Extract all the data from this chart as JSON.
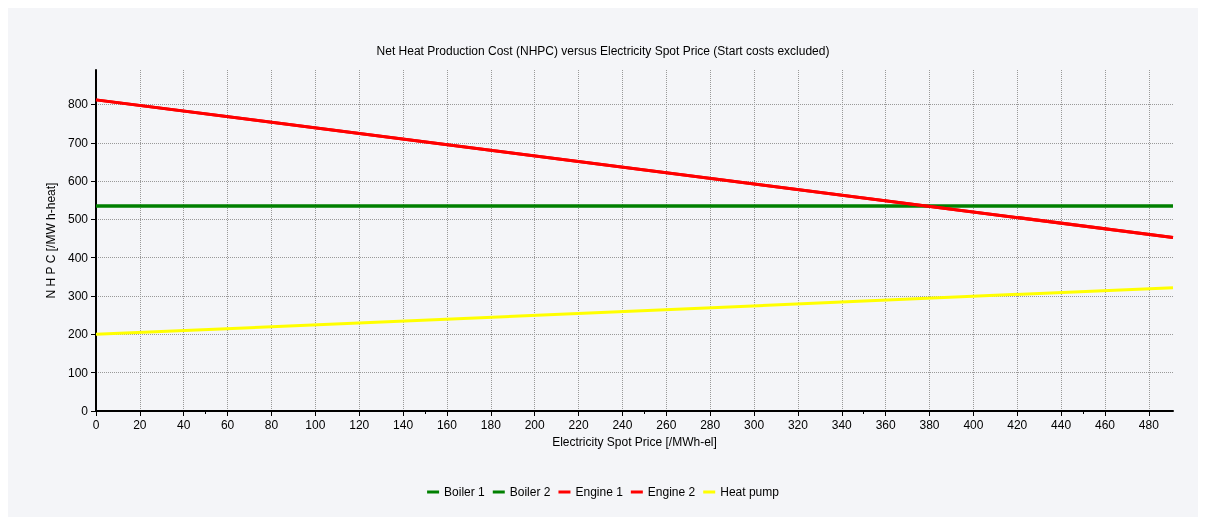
{
  "chart_data": {
    "type": "line",
    "title": "Net Heat Production Cost (NHPC) versus Electricity Spot Price (Start costs excluded)",
    "xlabel": "Electricity Spot Price [/MWh-el]",
    "ylabel": "N H P C [/MW h-heat]",
    "x": [
      0,
      491
    ],
    "series": [
      {
        "name": "Boiler 1",
        "color": "#008000",
        "values": [
          535,
          535
        ]
      },
      {
        "name": "Boiler 2",
        "color": "#008000",
        "values": [
          535,
          535
        ]
      },
      {
        "name": "Engine 1",
        "color": "#ff0000",
        "values": [
          812,
          453
        ]
      },
      {
        "name": "Engine 2",
        "color": "#ff0000",
        "values": [
          812,
          453
        ]
      },
      {
        "name": "Heat pump",
        "color": "#ffff00",
        "values": [
          200,
          322
        ]
      }
    ],
    "xlim": [
      0,
      491
    ],
    "xticks": [
      0,
      20,
      40,
      60,
      80,
      100,
      120,
      140,
      160,
      180,
      200,
      220,
      240,
      260,
      280,
      300,
      320,
      340,
      360,
      380,
      400,
      420,
      440,
      460,
      480
    ],
    "ylim": [
      0,
      890
    ],
    "yticks": [
      0,
      100,
      200,
      300,
      400,
      500,
      600,
      700,
      800
    ],
    "grid": true,
    "legend": "bottom",
    "marker": "none",
    "line_style": "solid"
  }
}
